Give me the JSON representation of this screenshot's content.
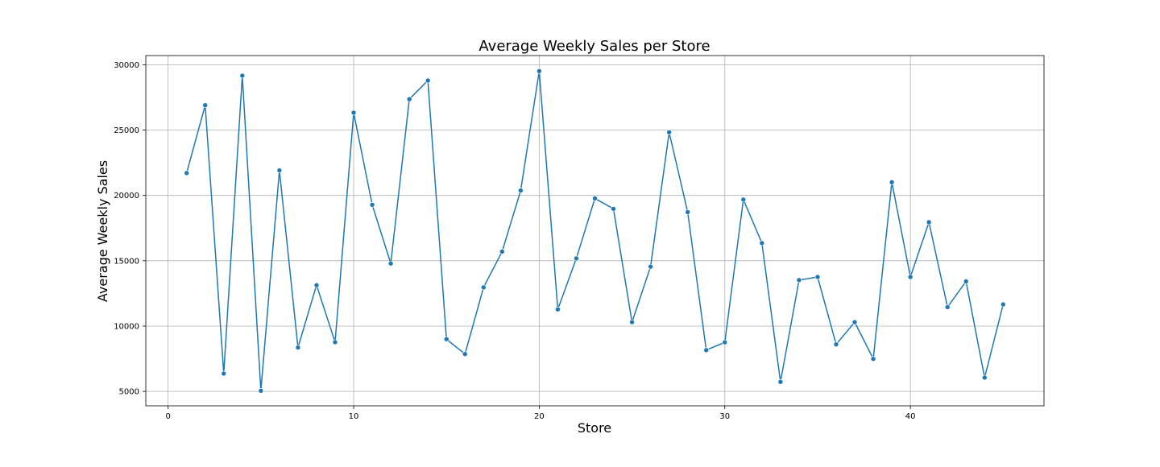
{
  "chart_data": {
    "type": "line",
    "title": "Average Weekly Sales per Store",
    "xlabel": "Store",
    "ylabel": "Average Weekly Sales",
    "xlim": [
      -1.2,
      47.2
    ],
    "ylim": [
      3900,
      30700
    ],
    "xticks": [
      0,
      10,
      20,
      30,
      40
    ],
    "yticks": [
      5000,
      10000,
      15000,
      20000,
      25000,
      30000
    ],
    "grid": true,
    "line_color": "#1f77b4",
    "series": [
      {
        "x": [
          1,
          2,
          3,
          4,
          5,
          6,
          7,
          8,
          9,
          10,
          11,
          12,
          13,
          14,
          15,
          16,
          17,
          18,
          19,
          20,
          21,
          22,
          23,
          24,
          25,
          26,
          27,
          28,
          29,
          30,
          31,
          32,
          33,
          34,
          35,
          36,
          37,
          38,
          39,
          40,
          41,
          42,
          43,
          44,
          45
        ],
        "values": [
          21710,
          26900,
          6370,
          29160,
          5050,
          21910,
          8360,
          13130,
          8770,
          26330,
          19280,
          14790,
          27360,
          28790,
          9000,
          7860,
          12960,
          15700,
          20370,
          29510,
          11280,
          15180,
          19770,
          18970,
          10300,
          14550,
          24830,
          18720,
          8160,
          8760,
          19680,
          16350,
          5730,
          13520,
          13760,
          8600,
          10300,
          7490,
          21010,
          13760,
          17950,
          11450,
          13420,
          6060,
          11660
        ]
      }
    ]
  }
}
